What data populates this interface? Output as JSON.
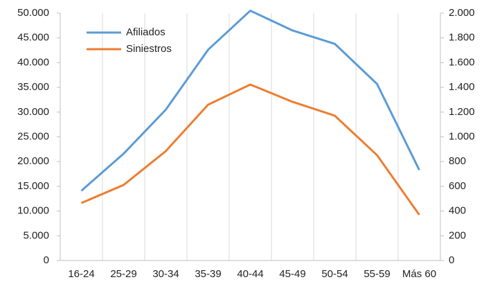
{
  "chart_data": {
    "type": "line",
    "categories": [
      "16-24",
      "25-29",
      "30-34",
      "35-39",
      "40-44",
      "45-49",
      "50-54",
      "55-59",
      "Más 60"
    ],
    "series": [
      {
        "name": "Afiliados",
        "color": "#5b9bd5",
        "values": [
          14100,
          21600,
          30500,
          42600,
          50500,
          46500,
          43800,
          35700,
          18300
        ]
      },
      {
        "name": "Siniestros",
        "color": "#ed7d31",
        "axis": "y2",
        "values": [
          465,
          611,
          885,
          1260,
          1423,
          1283,
          1171,
          852,
          370
        ]
      }
    ],
    "ylim": [
      0,
      50000
    ],
    "yticks": [
      0,
      {
        "value": 5000,
        "label": "5.000"
      },
      {
        "value": 10000,
        "label": "10.000"
      },
      {
        "value": 15000,
        "label": "15.000"
      },
      {
        "value": 20000,
        "label": "20.000"
      },
      {
        "value": 25000,
        "label": "25.000"
      },
      {
        "value": 30000,
        "label": "30.000"
      },
      {
        "value": 35000,
        "label": "35.000"
      },
      {
        "value": 40000,
        "label": "40.000"
      },
      {
        "value": 45000,
        "label": "45.000"
      },
      {
        "value": 50000,
        "label": "50.000"
      }
    ],
    "y2lim": [
      0,
      2000
    ],
    "y2ticks": [
      0,
      200,
      400,
      600,
      800,
      {
        "value": 1000,
        "label": "1.000"
      },
      {
        "value": 1200,
        "label": "1.200"
      },
      {
        "value": 1400,
        "label": "1.400"
      },
      {
        "value": 1600,
        "label": "1.600"
      },
      {
        "value": 1800,
        "label": "1.800"
      },
      {
        "value": 2000,
        "label": "2.000"
      }
    ],
    "legend": "upper left"
  }
}
